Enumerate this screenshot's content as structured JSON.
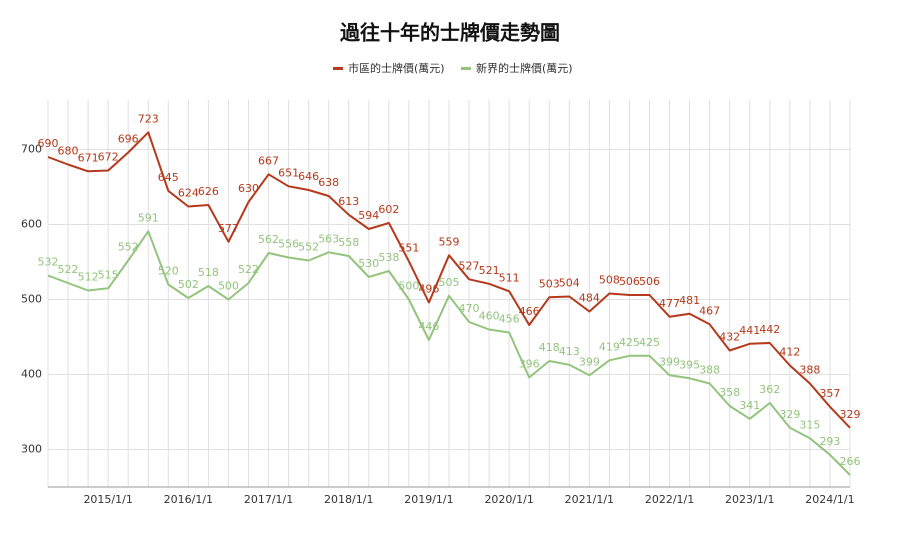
{
  "chart_data": {
    "type": "line",
    "title": "過往十年的士牌價走勢圖",
    "categories": [
      null,
      null,
      null,
      "2015/1/1",
      null,
      null,
      null,
      "2016/1/1",
      null,
      null,
      null,
      "2017/1/1",
      null,
      null,
      null,
      "2018/1/1",
      null,
      null,
      null,
      "2019/1/1",
      null,
      null,
      null,
      "2020/1/1",
      null,
      null,
      null,
      "2021/1/1",
      null,
      null,
      null,
      "2022/1/1",
      null,
      null,
      null,
      "2023/1/1",
      null,
      null,
      null,
      "2024/1/1",
      null
    ],
    "series": [
      {
        "name": "市區的士牌價(萬元)",
        "color": "#b5391a",
        "values": [
          690,
          680,
          671,
          672,
          696,
          723,
          645,
          624,
          626,
          577,
          630,
          667,
          651,
          646,
          638,
          613,
          594,
          602,
          551,
          496,
          559,
          527,
          521,
          511,
          466,
          503,
          504,
          484,
          508,
          506,
          506,
          477,
          481,
          467,
          432,
          441,
          442,
          412,
          388,
          357,
          329
        ]
      },
      {
        "name": "新界的士牌價(萬元)",
        "color": "#93c47d",
        "values": [
          532,
          522,
          512,
          515,
          552,
          591,
          520,
          502,
          518,
          500,
          522,
          562,
          556,
          552,
          563,
          558,
          530,
          538,
          500,
          446,
          505,
          470,
          460,
          456,
          396,
          418,
          413,
          399,
          419,
          425,
          425,
          399,
          395,
          388,
          358,
          341,
          362,
          329,
          315,
          293,
          266
        ]
      }
    ],
    "ylim": [
      250,
      766
    ],
    "yticks": [
      300,
      400,
      500,
      600,
      700
    ],
    "grid": true,
    "legend": "top"
  }
}
